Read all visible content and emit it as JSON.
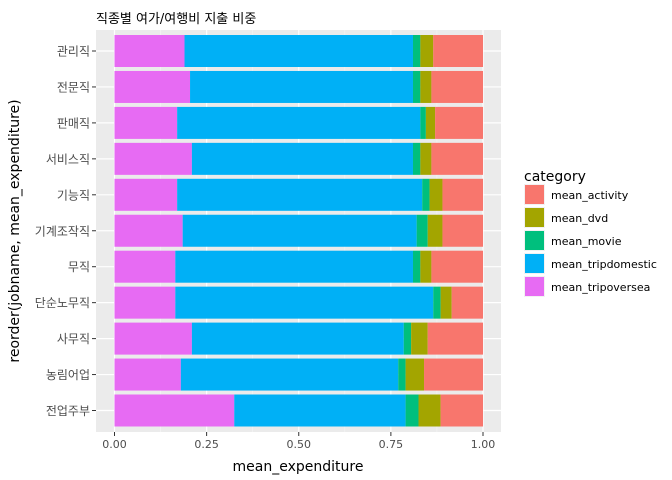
{
  "chart_data": {
    "type": "bar",
    "orientation": "horizontal",
    "stacked": "fill",
    "title": "직종별 여가/여행비 지출 비중",
    "xlabel": "mean_expenditure",
    "ylabel": "reorder(jobname, mean_expenditure)",
    "xlim": [
      0,
      1
    ],
    "x_ticks": [
      "0.00",
      "0.25",
      "0.50",
      "0.75",
      "1.00"
    ],
    "grid": true,
    "legend_position": "right",
    "legend_title": "category",
    "categories": [
      "관리직",
      "전문직",
      "판매직",
      "서비스직",
      "기능직",
      "기계조작직",
      "무직",
      "단순노무직",
      "사무직",
      "농림어업",
      "전업주부"
    ],
    "series": [
      {
        "name": "mean_tripoversea",
        "color": "#E76BF3",
        "values": [
          0.19,
          0.205,
          0.17,
          0.21,
          0.17,
          0.185,
          0.165,
          0.165,
          0.21,
          0.18,
          0.325
        ]
      },
      {
        "name": "mean_tripdomestic",
        "color": "#00B0F6",
        "values": [
          0.62,
          0.605,
          0.66,
          0.6,
          0.665,
          0.635,
          0.645,
          0.7,
          0.575,
          0.59,
          0.465
        ]
      },
      {
        "name": "mean_movie",
        "color": "#00BF7D",
        "values": [
          0.02,
          0.02,
          0.015,
          0.02,
          0.02,
          0.03,
          0.02,
          0.02,
          0.02,
          0.02,
          0.035
        ]
      },
      {
        "name": "mean_dvd",
        "color": "#A3A500",
        "values": [
          0.035,
          0.03,
          0.025,
          0.03,
          0.035,
          0.04,
          0.03,
          0.03,
          0.045,
          0.05,
          0.06
        ]
      },
      {
        "name": "mean_activity",
        "color": "#F8766D",
        "values": [
          0.135,
          0.14,
          0.13,
          0.14,
          0.11,
          0.11,
          0.14,
          0.085,
          0.15,
          0.16,
          0.115
        ]
      }
    ]
  },
  "legend_items": [
    {
      "name": "mean_activity",
      "color": "#F8766D"
    },
    {
      "name": "mean_dvd",
      "color": "#A3A500"
    },
    {
      "name": "mean_movie",
      "color": "#00BF7D"
    },
    {
      "name": "mean_tripdomestic",
      "color": "#00B0F6"
    },
    {
      "name": "mean_tripoversea",
      "color": "#E76BF3"
    }
  ]
}
